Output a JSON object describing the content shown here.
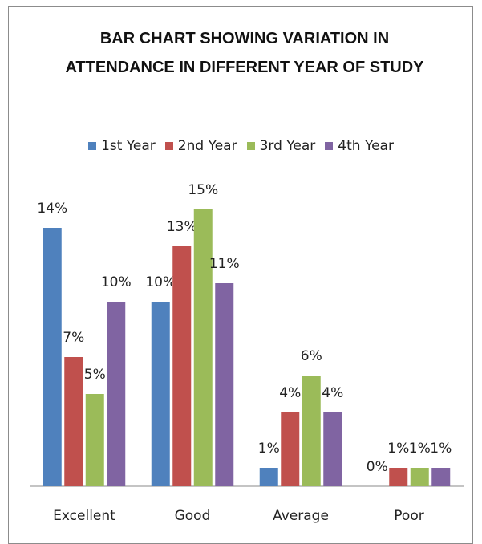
{
  "chart_data": {
    "type": "bar",
    "title": "BAR CHART SHOWING VARIATION IN ATTENDANCE IN DIFFERENT YEAR OF STUDY",
    "categories": [
      "Excellent",
      "Good",
      "Average",
      "Poor"
    ],
    "series": [
      {
        "name": "1st Year",
        "color": "#4f81bd",
        "values": [
          14,
          10,
          1,
          0
        ],
        "value_labels": [
          "14%",
          "10%",
          "1%",
          "0%"
        ]
      },
      {
        "name": "2nd Year",
        "color": "#c0504d",
        "values": [
          7,
          13,
          4,
          1
        ],
        "value_labels": [
          "7%",
          "13%",
          "4%",
          "1%"
        ]
      },
      {
        "name": "3rd Year",
        "color": "#9bbb59",
        "values": [
          5,
          15,
          6,
          1
        ],
        "value_labels": [
          "5%",
          "15%",
          "6%",
          "1%"
        ]
      },
      {
        "name": "4th Year",
        "color": "#8064a2",
        "values": [
          10,
          11,
          4,
          1
        ],
        "value_labels": [
          "10%",
          "11%",
          "4%",
          "1%"
        ]
      }
    ],
    "legend": "top"
  }
}
